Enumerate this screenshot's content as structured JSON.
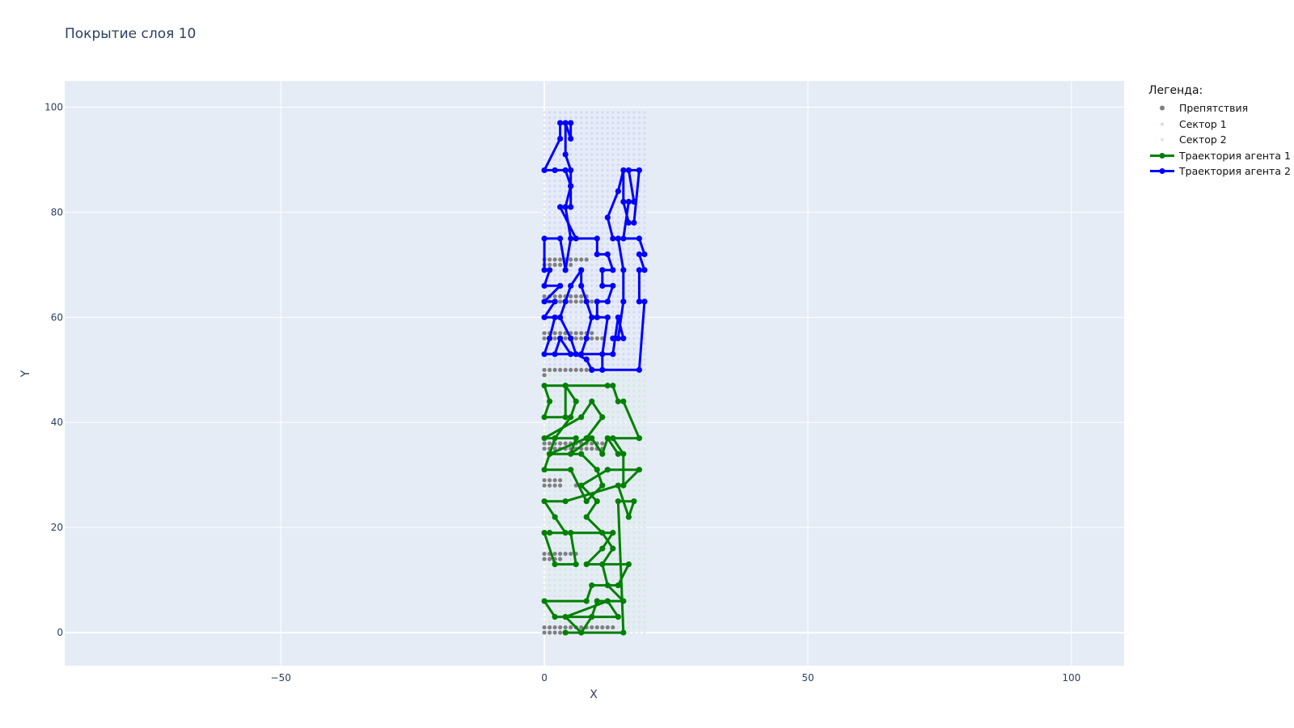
{
  "chart_data": {
    "type": "scatter",
    "title": "Покрытие слоя 10",
    "xlabel": "X",
    "ylabel": "Y",
    "xlim": [
      -91,
      110
    ],
    "ylim": [
      -6.3,
      105
    ],
    "x_ticks": [
      -50,
      0,
      50,
      100
    ],
    "y_ticks": [
      0,
      20,
      40,
      60,
      80,
      100
    ],
    "x_tick_labels": [
      "−50",
      "0",
      "50",
      "100"
    ],
    "y_tick_labels": [
      "0",
      "20",
      "40",
      "60",
      "80",
      "100"
    ],
    "grid": true,
    "legend_title": "Легенда:",
    "legend_position": "top-right outside",
    "colors": {
      "plot_bg": "#e5ecf6",
      "grid": "#ffffff",
      "obstacles": "#808080",
      "sector1": "#c8c8ff",
      "sector2": "#c8e8c8",
      "agent1": "#008000",
      "agent2": "#0000ff"
    },
    "series": [
      {
        "name": "Препятствия",
        "mode": "markers",
        "rows": [
          {
            "y": 0,
            "x": [
              0,
              1,
              2,
              3
            ]
          },
          {
            "y": 1,
            "x": [
              0,
              1,
              2,
              3,
              4,
              5,
              6,
              7,
              8,
              9,
              10,
              11,
              12,
              13
            ]
          },
          {
            "y": 14,
            "x": [
              0,
              1,
              2,
              3
            ]
          },
          {
            "y": 15,
            "x": [
              0,
              1,
              2,
              3,
              4,
              5,
              6
            ]
          },
          {
            "y": 28,
            "x": [
              0,
              1,
              2,
              3,
              6
            ]
          },
          {
            "y": 29,
            "x": [
              0,
              1,
              2,
              3
            ]
          },
          {
            "y": 35,
            "x": [
              0,
              1,
              2,
              3,
              4,
              5,
              6,
              7,
              8,
              9,
              10,
              11
            ]
          },
          {
            "y": 36,
            "x": [
              0,
              1,
              2,
              3,
              4,
              5,
              6,
              7,
              8,
              9,
              10,
              11
            ]
          },
          {
            "y": 49,
            "x": [
              0
            ]
          },
          {
            "y": 50,
            "x": [
              0,
              1,
              2,
              3,
              4,
              5,
              6,
              7,
              8,
              9
            ]
          },
          {
            "y": 56,
            "x": [
              0,
              1,
              2,
              3,
              4,
              5,
              6,
              7,
              8,
              9,
              10,
              11
            ]
          },
          {
            "y": 57,
            "x": [
              0,
              1,
              2,
              3,
              4,
              5,
              6,
              7,
              8,
              9
            ]
          },
          {
            "y": 63,
            "x": [
              0,
              1,
              2,
              3,
              4,
              5,
              6,
              7,
              8,
              9
            ]
          },
          {
            "y": 64,
            "x": [
              0,
              1,
              2,
              3,
              4,
              5,
              6,
              7,
              8
            ]
          },
          {
            "y": 70,
            "x": [
              0,
              1,
              2,
              3,
              4,
              5
            ]
          },
          {
            "y": 71,
            "x": [
              0,
              1,
              2,
              3,
              4,
              5,
              6,
              7,
              8
            ]
          }
        ]
      },
      {
        "name": "Сектор 1",
        "mode": "markers",
        "x_range": [
          0,
          19
        ],
        "y_range": [
          50,
          99
        ]
      },
      {
        "name": "Сектор 2",
        "mode": "markers",
        "x_range": [
          0,
          19
        ],
        "y_range": [
          0,
          49
        ]
      },
      {
        "name": "Траектория агента 1",
        "mode": "lines+markers",
        "points": [
          [
            4,
            0
          ],
          [
            15,
            0
          ],
          [
            14,
            25
          ],
          [
            17,
            25
          ],
          [
            16,
            22
          ],
          [
            14,
            28
          ],
          [
            4,
            25
          ],
          [
            0,
            25
          ],
          [
            2,
            22
          ],
          [
            4,
            19
          ],
          [
            1,
            19
          ],
          [
            0,
            19
          ],
          [
            2,
            13
          ],
          [
            6,
            13
          ],
          [
            5,
            19
          ],
          [
            13,
            19
          ],
          [
            11,
            16
          ],
          [
            8,
            13
          ],
          [
            16,
            13
          ],
          [
            14,
            9
          ],
          [
            9,
            9
          ],
          [
            8,
            6
          ],
          [
            0,
            6
          ],
          [
            2,
            3
          ],
          [
            14,
            3
          ],
          [
            12,
            6
          ],
          [
            4,
            3
          ],
          [
            7,
            0
          ],
          [
            9,
            3
          ],
          [
            10,
            6
          ],
          [
            15,
            6
          ],
          [
            12,
            9
          ],
          [
            11,
            13
          ],
          [
            13,
            16
          ],
          [
            11,
            19
          ],
          [
            8,
            22
          ],
          [
            10,
            25
          ],
          [
            7,
            28
          ],
          [
            12,
            31
          ],
          [
            18,
            31
          ],
          [
            15,
            28
          ],
          [
            15,
            34
          ],
          [
            13,
            37
          ],
          [
            18,
            37
          ],
          [
            15,
            44
          ],
          [
            14,
            44
          ],
          [
            13,
            47
          ],
          [
            12,
            47
          ],
          [
            4,
            47
          ],
          [
            0,
            47
          ],
          [
            1,
            44
          ],
          [
            0,
            41
          ],
          [
            4,
            41
          ],
          [
            4,
            47
          ],
          [
            6,
            44
          ],
          [
            5,
            41
          ],
          [
            2,
            37
          ],
          [
            1,
            34
          ],
          [
            7,
            34
          ],
          [
            10,
            31
          ],
          [
            11,
            28
          ],
          [
            8,
            25
          ],
          [
            5,
            31
          ],
          [
            0,
            31
          ],
          [
            1,
            34
          ],
          [
            8,
            37
          ],
          [
            11,
            41
          ],
          [
            9,
            44
          ],
          [
            7,
            41
          ],
          [
            0,
            37
          ],
          [
            6,
            37
          ],
          [
            5,
            34
          ],
          [
            9,
            37
          ],
          [
            11,
            34
          ],
          [
            12,
            37
          ],
          [
            14,
            34
          ]
        ]
      },
      {
        "name": "Траектория агента 2",
        "mode": "lines+markers",
        "points": [
          [
            9,
            50
          ],
          [
            18,
            50
          ],
          [
            19,
            63
          ],
          [
            18,
            63
          ],
          [
            18,
            69
          ],
          [
            19,
            69
          ],
          [
            18,
            72
          ],
          [
            19,
            72
          ],
          [
            18,
            75
          ],
          [
            15,
            75
          ],
          [
            16,
            82
          ],
          [
            17,
            82
          ],
          [
            16,
            88
          ],
          [
            18,
            88
          ],
          [
            17,
            78
          ],
          [
            16,
            78
          ],
          [
            15,
            82
          ],
          [
            15,
            88
          ],
          [
            14,
            84
          ],
          [
            12,
            79
          ],
          [
            13,
            75
          ],
          [
            14,
            75
          ],
          [
            15,
            69
          ],
          [
            15,
            63
          ],
          [
            14,
            56
          ],
          [
            13,
            56
          ],
          [
            15,
            56
          ],
          [
            14,
            60
          ],
          [
            13,
            53
          ],
          [
            0,
            53
          ],
          [
            1,
            56
          ],
          [
            2,
            60
          ],
          [
            0,
            60
          ],
          [
            2,
            63
          ],
          [
            0,
            63
          ],
          [
            3,
            66
          ],
          [
            0,
            66
          ],
          [
            1,
            69
          ],
          [
            0,
            69
          ],
          [
            0,
            75
          ],
          [
            3,
            75
          ],
          [
            4,
            69
          ],
          [
            5,
            75
          ],
          [
            4,
            81
          ],
          [
            5,
            85
          ],
          [
            4,
            88
          ],
          [
            2,
            88
          ],
          [
            0,
            88
          ],
          [
            3,
            94
          ],
          [
            3,
            97
          ],
          [
            5,
            97
          ],
          [
            5,
            94
          ],
          [
            4,
            97
          ],
          [
            4,
            91
          ],
          [
            5,
            88
          ],
          [
            5,
            85
          ],
          [
            5,
            81
          ],
          [
            3,
            81
          ],
          [
            6,
            75
          ],
          [
            10,
            75
          ],
          [
            10,
            72
          ],
          [
            12,
            72
          ],
          [
            13,
            69
          ],
          [
            11,
            69
          ],
          [
            11,
            66
          ],
          [
            13,
            66
          ],
          [
            12,
            63
          ],
          [
            10,
            63
          ],
          [
            10,
            60
          ],
          [
            12,
            60
          ],
          [
            11,
            53
          ],
          [
            11,
            50
          ],
          [
            9,
            50
          ],
          [
            8,
            52
          ],
          [
            6,
            53
          ],
          [
            5,
            56
          ],
          [
            3,
            60
          ],
          [
            4,
            63
          ],
          [
            5,
            66
          ],
          [
            7,
            69
          ],
          [
            7,
            66
          ],
          [
            8,
            63
          ],
          [
            9,
            60
          ],
          [
            8,
            56
          ],
          [
            7,
            53
          ],
          [
            5,
            53
          ],
          [
            3,
            56
          ],
          [
            2,
            53
          ]
        ]
      }
    ]
  }
}
